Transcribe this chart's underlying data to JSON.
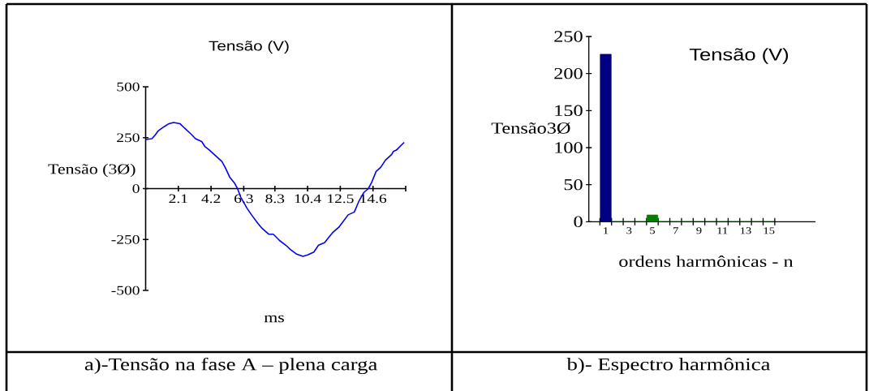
{
  "chart_data": [
    {
      "type": "line",
      "title": "Tensão (V)",
      "xlabel": "ms",
      "ylabel": "Tensão (3Ø)",
      "x": [
        0,
        0.4,
        0.6,
        0.8,
        1.2,
        1.5,
        1.8,
        2.2,
        2.5,
        2.9,
        3.2,
        3.6,
        3.8,
        4.1,
        4.5,
        4.9,
        5.1,
        5.4,
        5.7,
        5.9,
        6.1,
        6.5,
        6.8,
        7.2,
        7.5,
        7.9,
        8.2,
        8.6,
        9.0,
        9.3,
        9.7,
        10.1,
        10.4,
        10.8,
        11.1,
        11.5,
        11.7,
        12.0,
        12.4,
        12.6,
        13.0,
        13.4,
        13.7,
        14.0,
        14.3,
        14.5,
        14.8,
        15.1,
        15.4,
        15.8,
        15.9,
        16.1,
        16.6
      ],
      "values": [
        241,
        245,
        262,
        283,
        305,
        319,
        325,
        319,
        297,
        269,
        245,
        231,
        207,
        189,
        161,
        133,
        105,
        56,
        28,
        0,
        -41,
        -95,
        -129,
        -170,
        -197,
        -224,
        -224,
        -255,
        -278,
        -299,
        -322,
        -333,
        -326,
        -312,
        -278,
        -265,
        -245,
        -217,
        -190,
        -170,
        -129,
        -115,
        -61,
        -20,
        0,
        28,
        84,
        105,
        140,
        168,
        182,
        189,
        227
      ],
      "color": "#0000ff",
      "xlim": [
        0,
        16.7
      ],
      "ylim": [
        -500,
        500
      ],
      "xticks": [
        2.1,
        4.2,
        6.3,
        8.3,
        10.4,
        12.5,
        14.6,
        {
          "value": 16.7,
          "label": null
        }
      ],
      "yticks": [
        -500,
        -250,
        0,
        250,
        500
      ],
      "annotations": [
        "a)-Tensão na fase A – plena carga"
      ]
    },
    {
      "type": "bar",
      "title": "Tensão (V)",
      "xlabel": "ordens harmônicas - n",
      "ylabel": "Tensão3Ø",
      "categories": [
        "1",
        null,
        "3",
        null,
        "5",
        null,
        "7",
        null,
        "9",
        null,
        "11",
        null,
        "13",
        null,
        "15"
      ],
      "values": [
        226,
        0,
        0,
        0,
        9,
        0,
        0,
        0,
        0,
        0,
        0,
        0,
        0,
        0,
        0
      ],
      "colors": [
        "#000080",
        "#008000",
        "#008000",
        "#008000",
        "#008000",
        "#008000",
        "#008000",
        "#008000",
        "#008000",
        "#008000",
        "#008000",
        "#008000",
        "#008000",
        "#008000",
        "#008000"
      ],
      "ylim": [
        0,
        250
      ],
      "yticks": [
        0,
        50,
        100,
        150,
        200,
        250
      ],
      "annotations": [
        "b)- Espectro harmônica"
      ]
    }
  ]
}
